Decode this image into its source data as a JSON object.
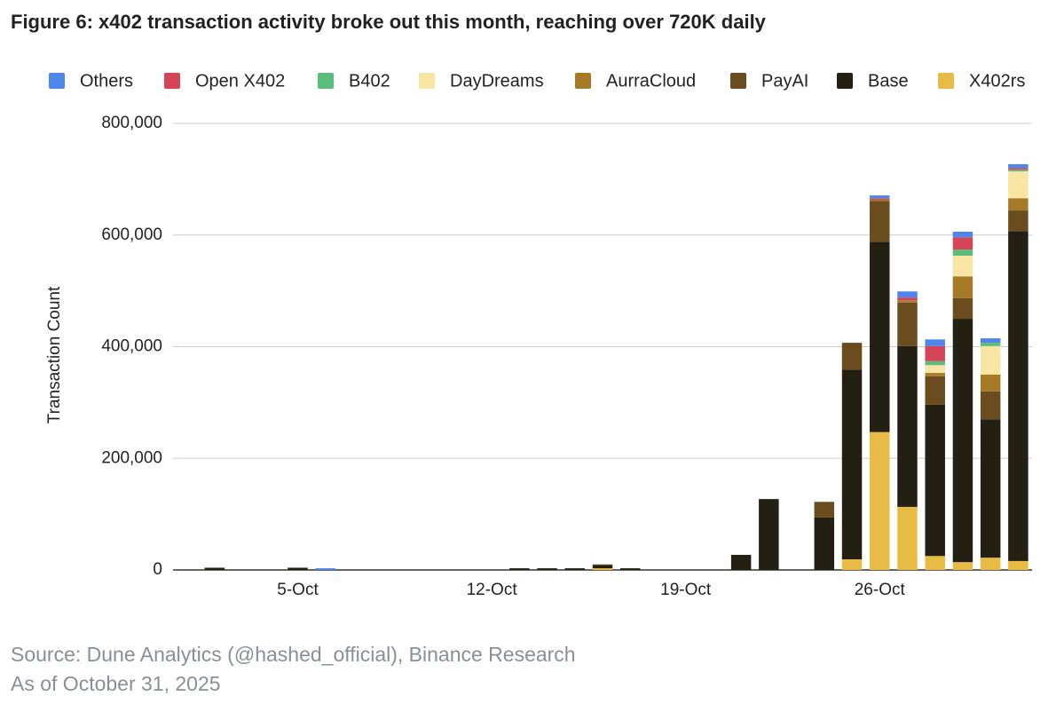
{
  "chart_data": {
    "type": "stacked_bar",
    "title": "Figure 6: x402 transaction activity broke out this month, reaching over 720K daily",
    "y_axis_label": "Transaction Count",
    "categories": [
      null,
      null,
      null,
      null,
      "5-Oct",
      null,
      null,
      null,
      null,
      null,
      null,
      "12-Oct",
      null,
      null,
      null,
      null,
      null,
      null,
      "19-Oct",
      null,
      null,
      null,
      null,
      null,
      null,
      "26-Oct",
      null,
      null,
      null,
      null,
      null
    ],
    "series": [
      {
        "name": "Others",
        "color": "#4f86ec",
        "values": [
          0,
          0,
          0,
          0,
          0,
          3000,
          0,
          0,
          0,
          0,
          0,
          0,
          0,
          0,
          0,
          0,
          0,
          0,
          0,
          0,
          0,
          0,
          0,
          0,
          0,
          5000,
          11000,
          12000,
          10000,
          8000,
          7000
        ]
      },
      {
        "name": "Open X402",
        "color": "#d64457",
        "values": [
          0,
          0,
          0,
          0,
          0,
          0,
          0,
          0,
          0,
          0,
          0,
          0,
          0,
          0,
          0,
          0,
          0,
          0,
          0,
          0,
          0,
          0,
          0,
          0,
          0,
          2000,
          5000,
          27000,
          22000,
          0,
          3000
        ]
      },
      {
        "name": "B402",
        "color": "#5bbd7c",
        "values": [
          0,
          0,
          0,
          0,
          0,
          0,
          0,
          0,
          0,
          0,
          0,
          0,
          0,
          0,
          0,
          0,
          0,
          0,
          0,
          0,
          0,
          0,
          0,
          0,
          0,
          0,
          0,
          7000,
          11000,
          6000,
          3000
        ]
      },
      {
        "name": "DayDreams",
        "color": "#f9e5a3",
        "values": [
          0,
          0,
          0,
          0,
          0,
          0,
          0,
          0,
          0,
          0,
          0,
          0,
          0,
          0,
          0,
          0,
          0,
          0,
          0,
          0,
          0,
          0,
          0,
          0,
          0,
          0,
          0,
          14000,
          37000,
          51000,
          48000
        ]
      },
      {
        "name": "AurraCloud",
        "color": "#a77a28",
        "values": [
          0,
          0,
          0,
          0,
          0,
          0,
          0,
          0,
          0,
          0,
          0,
          0,
          0,
          0,
          0,
          0,
          0,
          0,
          0,
          0,
          0,
          0,
          0,
          0,
          0,
          3000,
          4000,
          6000,
          39000,
          30000,
          22000
        ]
      },
      {
        "name": "PayAI",
        "color": "#6b4c1e",
        "values": [
          0,
          0,
          0,
          0,
          0,
          0,
          0,
          0,
          0,
          0,
          0,
          0,
          0,
          0,
          0,
          2000,
          0,
          0,
          0,
          0,
          0,
          0,
          0,
          28000,
          48000,
          73000,
          78000,
          51000,
          37000,
          50000,
          37000
        ]
      },
      {
        "name": "Base",
        "color": "#231f12",
        "values": [
          0,
          4000,
          0,
          0,
          4000,
          0,
          0,
          0,
          0,
          0,
          0,
          0,
          3000,
          3000,
          3000,
          5000,
          3000,
          0,
          0,
          0,
          27000,
          127000,
          0,
          94000,
          340000,
          341000,
          288000,
          271000,
          436000,
          248000,
          591000
        ]
      },
      {
        "name": "X402rs",
        "color": "#e8bc44",
        "values": [
          0,
          0,
          0,
          0,
          0,
          0,
          0,
          0,
          0,
          0,
          0,
          0,
          0,
          0,
          0,
          3000,
          0,
          0,
          0,
          0,
          0,
          0,
          0,
          0,
          19000,
          247000,
          113000,
          25000,
          14000,
          22000,
          16000
        ]
      }
    ],
    "ylim": [
      0,
      800000
    ],
    "yticks": [
      0,
      {
        "value": 200000,
        "label": "200,000"
      },
      {
        "value": 400000,
        "label": "400,000"
      },
      {
        "value": 600000,
        "label": "600,000"
      },
      {
        "value": 800000,
        "label": "800,000"
      }
    ],
    "grid": true,
    "legend": "top",
    "source": "Source: Dune Analytics (@hashed_official), Binance Research",
    "note": "As of October 31, 2025"
  }
}
